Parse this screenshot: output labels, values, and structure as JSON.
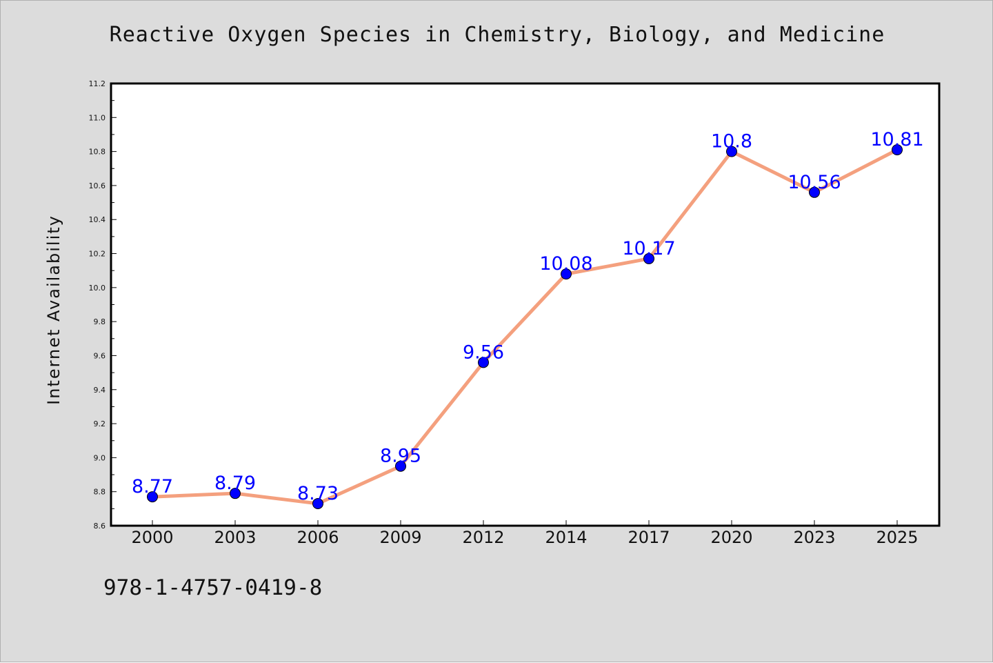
{
  "title": "Reactive Oxygen Species in Chemistry, Biology, and Medicine",
  "footer_text": "978-1-4757-0419-8",
  "colors": {
    "background": "#dcdcdc",
    "plot_background": "#ffffff",
    "line": "#f4a07e",
    "marker": "#0000ff",
    "data_label": "#0000ff"
  },
  "chart_data": {
    "type": "line",
    "title": "Reactive Oxygen Species in Chemistry, Biology, and Medicine",
    "xlabel": "",
    "ylabel": "Internet Availability",
    "categories": [
      "2000",
      "2003",
      "2006",
      "2009",
      "2012",
      "2014",
      "2017",
      "2020",
      "2023",
      "2025"
    ],
    "series": [
      {
        "values": [
          8.77,
          8.79,
          8.73,
          8.95,
          9.56,
          10.08,
          10.17,
          10.8,
          10.56,
          10.81
        ]
      }
    ],
    "data_labels": [
      "8.77",
      "8.79",
      "8.73",
      "8.95",
      "9.56",
      "10.08",
      "10.17",
      "10.8",
      "10.56",
      "10.81"
    ],
    "ylim": [
      8.6,
      11.2
    ],
    "y_ticks": [
      "8.6",
      "8.8",
      "9.0",
      "9.2",
      "9.4",
      "9.6",
      "9.8",
      "10.0",
      "10.2",
      "10.4",
      "10.6",
      "10.8",
      "11.0",
      "11.2"
    ],
    "grid": false,
    "legend": "none"
  }
}
